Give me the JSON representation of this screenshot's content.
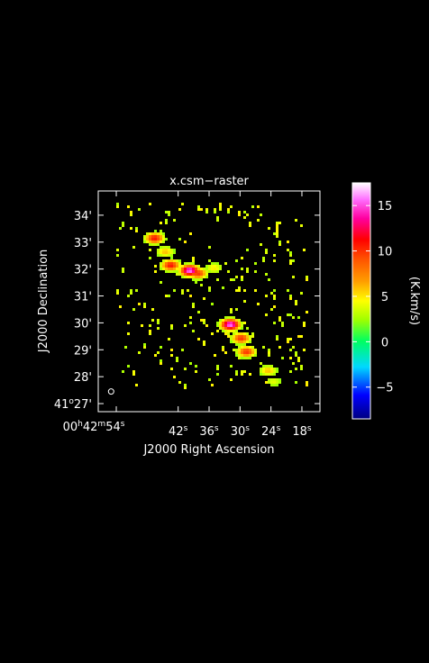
{
  "chart_data": {
    "type": "heatmap",
    "title": "x.csm−raster",
    "xlabel": "J2000 Right Ascension",
    "ylabel": "J2000 Declination",
    "x_ticks": [
      {
        "value": 54,
        "h": "00",
        "hu": "h",
        "m": "42",
        "mu": "m",
        "s": "54",
        "su": "s"
      },
      {
        "value": 42,
        "s": "42",
        "su": "s"
      },
      {
        "value": 36,
        "s": "36",
        "su": "s"
      },
      {
        "value": 30,
        "s": "30",
        "su": "s"
      },
      {
        "value": 24,
        "s": "24",
        "su": "s"
      },
      {
        "value": 18,
        "s": "18",
        "su": "s"
      }
    ],
    "y_ticks": [
      {
        "value": 27,
        "deg": "41",
        "degu": "o",
        "min": "27",
        "minu": "'"
      },
      {
        "value": 28,
        "min": "28",
        "minu": "'"
      },
      {
        "value": 29,
        "min": "29",
        "minu": "'"
      },
      {
        "value": 30,
        "min": "30",
        "minu": "'"
      },
      {
        "value": 31,
        "min": "31",
        "minu": "'"
      },
      {
        "value": 32,
        "min": "32",
        "minu": "'"
      },
      {
        "value": 33,
        "min": "33",
        "minu": "'"
      },
      {
        "value": 34,
        "min": "34",
        "minu": "'"
      }
    ],
    "xlim_seconds": [
      57.5,
      14.5
    ],
    "ylim_arcmin": [
      26.7,
      34.9
    ],
    "colorbar": {
      "label": "(K.km/s)",
      "range": [
        -8.5,
        17.5
      ],
      "ticks": [
        -5,
        0,
        5,
        10,
        15
      ],
      "colormap": "rainbow (dark blue → cyan → green → yellow → orange → red → magenta → white)"
    },
    "beam": {
      "ra_s": 55.0,
      "dec_arcmin": 27.45,
      "shape": "ellipse"
    },
    "emission_regions": [
      {
        "ra_s": 47.0,
        "dec_arcmin": 33.15,
        "peak": 11
      },
      {
        "ra_s": 45.0,
        "dec_arcmin": 32.7,
        "peak": 6
      },
      {
        "ra_s": 43.5,
        "dec_arcmin": 32.15,
        "peak": 11
      },
      {
        "ra_s": 40.0,
        "dec_arcmin": 32.0,
        "peak": 16
      },
      {
        "ra_s": 38.5,
        "dec_arcmin": 31.85,
        "peak": 10
      },
      {
        "ra_s": 35.5,
        "dec_arcmin": 32.1,
        "peak": 5
      },
      {
        "ra_s": 32.0,
        "dec_arcmin": 29.95,
        "peak": 16
      },
      {
        "ra_s": 30.0,
        "dec_arcmin": 29.5,
        "peak": 10
      },
      {
        "ra_s": 29.0,
        "dec_arcmin": 28.95,
        "peak": 10
      },
      {
        "ra_s": 25.0,
        "dec_arcmin": 28.25,
        "peak": 6
      },
      {
        "ra_s": 24.0,
        "dec_arcmin": 27.85,
        "peak": 4
      }
    ]
  }
}
